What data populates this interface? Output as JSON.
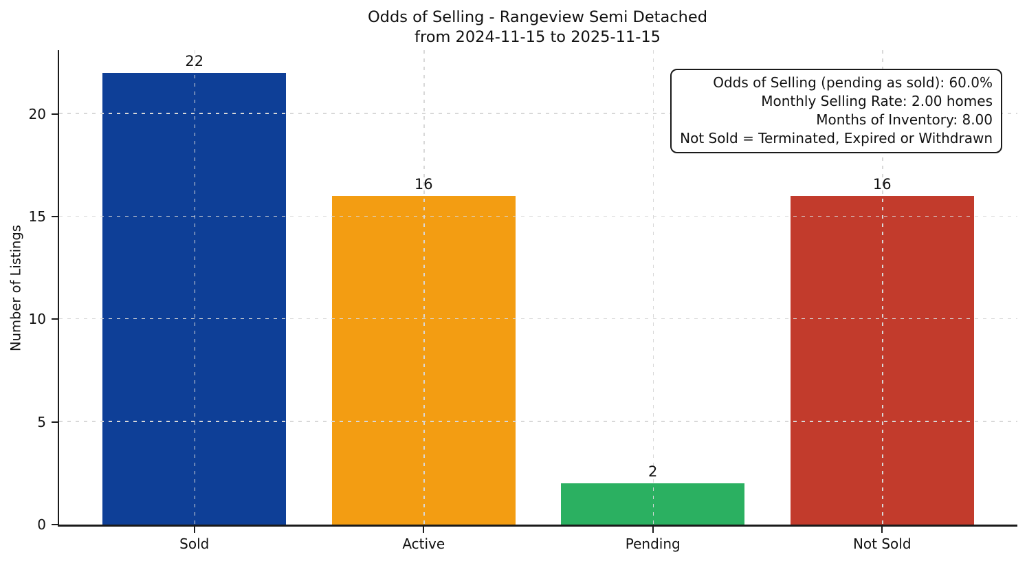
{
  "chart_data": {
    "type": "bar",
    "title": "Odds of Selling - Rangeview Semi Detached",
    "subtitle": "from 2024-11-15 to 2025-11-15",
    "categories": [
      "Sold",
      "Active",
      "Pending",
      "Not Sold"
    ],
    "values": [
      22,
      16,
      2,
      16
    ],
    "bar_colors": [
      "#0e3f97",
      "#f39d12",
      "#2bb061",
      "#c23b2c"
    ],
    "xlabel": "",
    "ylabel": "Number of Listings",
    "yticks": [
      0,
      5,
      10,
      15,
      20
    ],
    "ylim": [
      0,
      23.1
    ],
    "grid": "dashed, horizontal at y-ticks and vertical at bar centers, drawn above bars",
    "legend": "none",
    "annotation": {
      "lines": [
        "Odds of Selling (pending as sold): 60.0%",
        "Monthly Selling Rate: 2.00 homes",
        "Months of Inventory: 8.00",
        "Not Sold = Terminated, Expired or Withdrawn"
      ]
    },
    "stats": {
      "odds_of_selling_pct": 60.0,
      "monthly_selling_rate_homes": 2.0,
      "months_of_inventory": 8.0
    },
    "colors": {
      "axis": "#1a1a1a",
      "grid": "#d8d8d8",
      "text": "#111111",
      "background": "#ffffff"
    }
  }
}
